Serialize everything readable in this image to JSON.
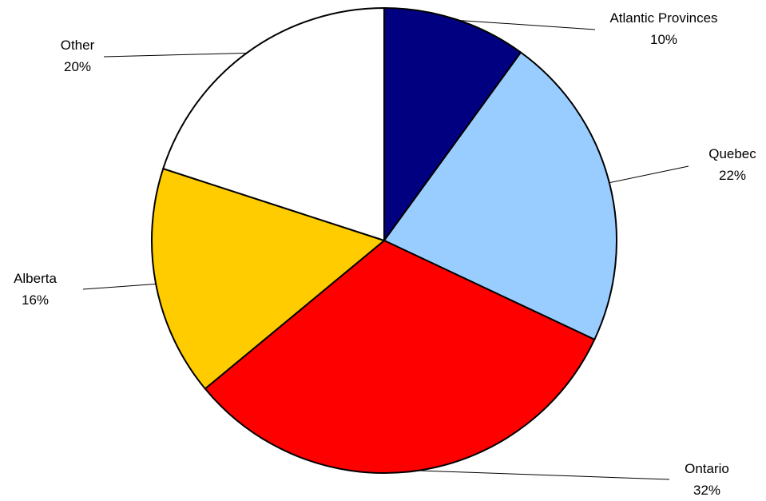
{
  "chart_data": {
    "type": "pie",
    "title": "",
    "start_angle_deg": 0,
    "direction": "clockwise",
    "slices": [
      {
        "label": "Atlantic Provinces",
        "value": 10,
        "value_label": "10%",
        "color": "#000080"
      },
      {
        "label": "Quebec",
        "value": 22,
        "value_label": "22%",
        "color": "#99CCFF"
      },
      {
        "label": "Ontario",
        "value": 32,
        "value_label": "32%",
        "color": "#FF0000"
      },
      {
        "label": "Alberta",
        "value": 16,
        "value_label": "16%",
        "color": "#FFCC00"
      },
      {
        "label": "Other",
        "value": 20,
        "value_label": "20%",
        "color": "#FFFFFF"
      }
    ],
    "slice_outline_color": "#000000",
    "legend": "none"
  }
}
